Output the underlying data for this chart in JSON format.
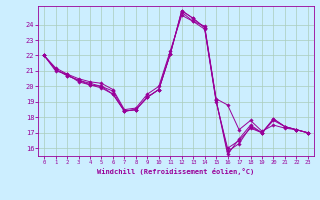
{
  "xlabel": "Windchill (Refroidissement éolien,°C)",
  "bg_color": "#cceeff",
  "line_color": "#990099",
  "xlim": [
    -0.5,
    23.5
  ],
  "ylim": [
    15.5,
    25.2
  ],
  "xticks": [
    0,
    1,
    2,
    3,
    4,
    5,
    6,
    7,
    8,
    9,
    10,
    11,
    12,
    13,
    14,
    15,
    16,
    17,
    18,
    19,
    20,
    21,
    22,
    23
  ],
  "yticks": [
    16,
    17,
    18,
    19,
    20,
    21,
    22,
    23,
    24
  ],
  "grid_color": "#aaccbb",
  "lines": [
    {
      "x": [
        0,
        1,
        2,
        3,
        4,
        5,
        6,
        7,
        8,
        9,
        10,
        11,
        12,
        13,
        14,
        15,
        16,
        17,
        18,
        19,
        20,
        21,
        22,
        23
      ],
      "y": [
        22.0,
        21.2,
        20.8,
        20.5,
        20.3,
        20.2,
        19.8,
        18.5,
        18.6,
        19.5,
        20.0,
        22.3,
        24.6,
        24.2,
        23.9,
        19.2,
        18.8,
        17.2,
        17.8,
        17.1,
        17.5,
        17.3,
        17.2,
        17.0
      ]
    },
    {
      "x": [
        0,
        1,
        2,
        3,
        4,
        5,
        6,
        7,
        8,
        9,
        10,
        11,
        12,
        13,
        14,
        15,
        16,
        17,
        18,
        19,
        20,
        21,
        22,
        23
      ],
      "y": [
        22.0,
        21.1,
        20.7,
        20.4,
        20.2,
        20.0,
        19.5,
        18.4,
        18.5,
        19.3,
        19.8,
        22.1,
        24.9,
        24.4,
        23.8,
        19.1,
        15.8,
        16.3,
        17.4,
        17.0,
        17.9,
        17.4,
        17.2,
        17.0
      ]
    },
    {
      "x": [
        0,
        1,
        2,
        3,
        4,
        5,
        6,
        7,
        8,
        9,
        10,
        11,
        12,
        13,
        14,
        15,
        16,
        17,
        18,
        19,
        20,
        21,
        22,
        23
      ],
      "y": [
        22.0,
        21.1,
        20.7,
        20.4,
        20.1,
        19.9,
        19.5,
        18.4,
        18.5,
        19.3,
        19.8,
        22.1,
        24.9,
        24.4,
        23.8,
        19.1,
        15.6,
        16.6,
        17.5,
        17.0,
        17.9,
        17.4,
        17.2,
        17.0
      ]
    },
    {
      "x": [
        0,
        1,
        2,
        3,
        4,
        5,
        6,
        7,
        8,
        9,
        10,
        11,
        12,
        13,
        14,
        15,
        16,
        17,
        18,
        19,
        20,
        21,
        22,
        23
      ],
      "y": [
        22.0,
        21.0,
        20.8,
        20.3,
        20.1,
        20.0,
        19.7,
        18.4,
        18.5,
        19.3,
        19.8,
        22.1,
        24.8,
        24.2,
        23.7,
        19.0,
        16.0,
        16.5,
        17.3,
        17.0,
        17.8,
        17.4,
        17.2,
        17.0
      ]
    }
  ]
}
